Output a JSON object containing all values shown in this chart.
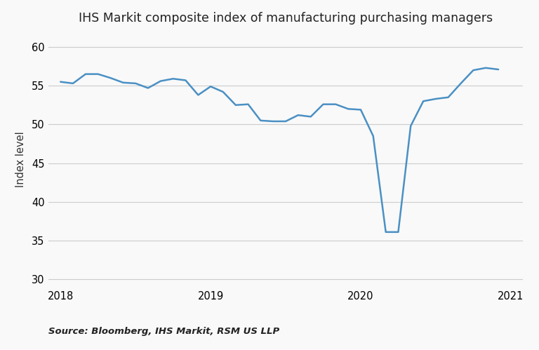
{
  "title": "IHS Markit composite index of manufacturing purchasing managers",
  "ylabel": "Index level",
  "source_text": "Source: Bloomberg, IHS Markit, RSM US LLP",
  "line_color": "#4a90c4",
  "background_color": "#f9f9f9",
  "plot_bg_color": "#f9f9f9",
  "ylim": [
    29,
    62
  ],
  "yticks": [
    30,
    35,
    40,
    45,
    50,
    55,
    60
  ],
  "x_values": [
    2018.0,
    2018.083,
    2018.167,
    2018.25,
    2018.333,
    2018.417,
    2018.5,
    2018.583,
    2018.667,
    2018.75,
    2018.833,
    2018.917,
    2019.0,
    2019.083,
    2019.167,
    2019.25,
    2019.333,
    2019.417,
    2019.5,
    2019.583,
    2019.667,
    2019.75,
    2019.833,
    2019.917,
    2020.0,
    2020.083,
    2020.167,
    2020.25,
    2020.333,
    2020.417,
    2020.5,
    2020.583,
    2020.667,
    2020.75,
    2020.833,
    2020.917
  ],
  "y_values": [
    55.5,
    55.3,
    56.5,
    56.5,
    56.0,
    55.4,
    55.3,
    54.7,
    55.6,
    55.9,
    55.7,
    53.8,
    54.9,
    54.2,
    52.5,
    52.6,
    50.5,
    50.4,
    50.4,
    51.2,
    51.0,
    52.6,
    52.6,
    52.0,
    51.9,
    48.5,
    36.1,
    36.1,
    49.8,
    53.0,
    53.3,
    53.5,
    55.3,
    57.0,
    57.3,
    57.1
  ],
  "xtick_positions": [
    2018.0,
    2019.0,
    2020.0,
    2021.0
  ],
  "xtick_labels": [
    "2018",
    "2019",
    "2020",
    "2021"
  ],
  "xlim": [
    2017.92,
    2021.08
  ],
  "title_fontsize": 12.5,
  "axis_label_fontsize": 10.5,
  "tick_fontsize": 10.5,
  "source_fontsize": 9.5,
  "line_width": 1.8,
  "grid_color": "#cccccc",
  "grid_linewidth": 0.8
}
